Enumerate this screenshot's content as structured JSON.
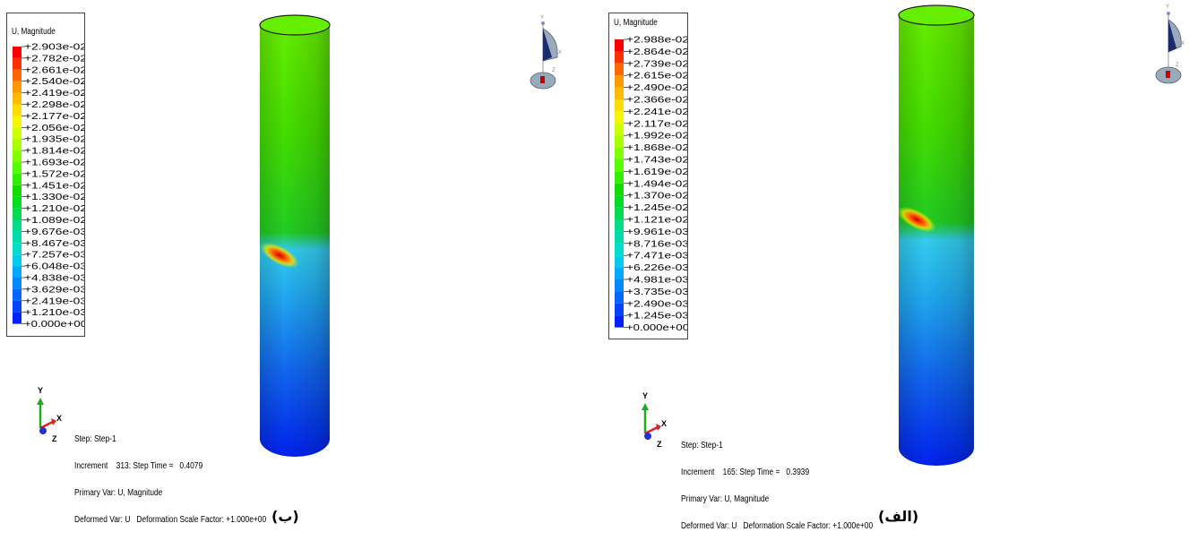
{
  "panels": [
    {
      "id": "b",
      "caption": "(ب)",
      "legend": {
        "title": "U, Magnitude",
        "values": [
          "+2.903e-02",
          "+2.782e-02",
          "+2.661e-02",
          "+2.540e-02",
          "+2.419e-02",
          "+2.298e-02",
          "+2.177e-02",
          "+2.056e-02",
          "+1.935e-02",
          "+1.814e-02",
          "+1.693e-02",
          "+1.572e-02",
          "+1.451e-02",
          "+1.330e-02",
          "+1.210e-02",
          "+1.089e-02",
          "+9.676e-03",
          "+8.467e-03",
          "+7.257e-03",
          "+6.048e-03",
          "+4.838e-03",
          "+3.629e-03",
          "+2.419e-03",
          "+1.210e-03",
          "+0.000e+00"
        ]
      },
      "info": {
        "step": "Step: Step-1",
        "increment": "Increment    313: Step Time =   0.4079",
        "primary_var": "Primary Var: U, Magnitude",
        "deformed_var": "Deformed Var: U   Deformation Scale Factor: +1.000e+00"
      },
      "triad": {
        "y": "Y",
        "x": "X",
        "z": "Z"
      },
      "view_glyph_labels": {
        "y": "Y",
        "x": "X",
        "z": "Z"
      }
    },
    {
      "id": "a",
      "caption": "(الف)",
      "legend": {
        "title": "U, Magnitude",
        "values": [
          "+2.988e-02",
          "+2.864e-02",
          "+2.739e-02",
          "+2.615e-02",
          "+2.490e-02",
          "+2.366e-02",
          "+2.241e-02",
          "+2.117e-02",
          "+1.992e-02",
          "+1.868e-02",
          "+1.743e-02",
          "+1.619e-02",
          "+1.494e-02",
          "+1.370e-02",
          "+1.245e-02",
          "+1.121e-02",
          "+9.961e-03",
          "+8.716e-03",
          "+7.471e-03",
          "+6.226e-03",
          "+4.981e-03",
          "+3.735e-03",
          "+2.490e-03",
          "+1.245e-03",
          "+0.000e+00"
        ]
      },
      "info": {
        "step": "Step: Step-1",
        "increment": "Increment    165: Step Time =   0.3939",
        "primary_var": "Primary Var: U, Magnitude",
        "deformed_var": "Deformed Var: U   Deformation Scale Factor: +1.000e+00"
      },
      "triad": {
        "y": "Y",
        "x": "X",
        "z": "Z"
      },
      "view_glyph_labels": {
        "y": "Y",
        "x": "X",
        "z": "Z"
      }
    }
  ],
  "colors": {
    "scale": [
      "#ff0000",
      "#ff3000",
      "#ff6600",
      "#ff9900",
      "#ffbb00",
      "#ffdd00",
      "#f5f500",
      "#ccff00",
      "#a8ff00",
      "#80ff00",
      "#55ff00",
      "#33ee00",
      "#11dd00",
      "#00dd22",
      "#00dd55",
      "#00dd88",
      "#00ddaa",
      "#00ddcc",
      "#00ccee",
      "#00aaff",
      "#0088ff",
      "#0066ff",
      "#0044ff",
      "#0022ff",
      "#0000ff"
    ],
    "triad_y": "#22aa22",
    "triad_x": "#dd2222",
    "triad_z": "#2233cc"
  }
}
